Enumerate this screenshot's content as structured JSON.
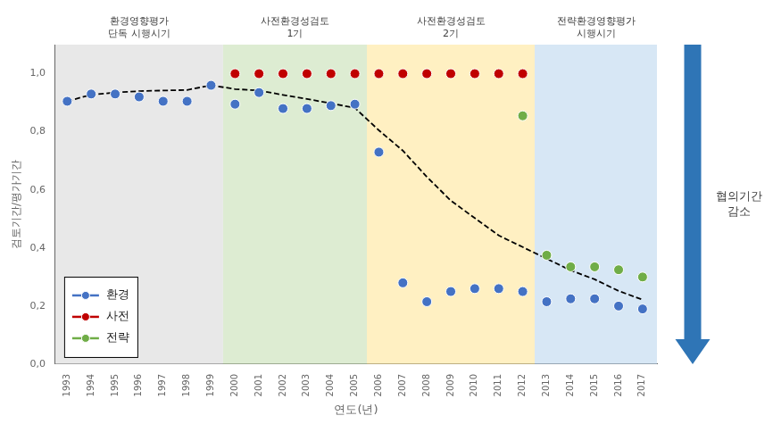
{
  "chart_data": {
    "type": "scatter",
    "xlabel": "연도(년)",
    "ylabel": "검토기간/평가기간",
    "xlim": [
      1992.5,
      2017.6
    ],
    "xticks": [
      1993,
      1994,
      1995,
      1996,
      1997,
      1998,
      1999,
      2000,
      2001,
      2002,
      2003,
      2004,
      2005,
      2006,
      2007,
      2008,
      2009,
      2010,
      2011,
      2012,
      2013,
      2014,
      2015,
      2016,
      2017
    ],
    "ylim": [
      0.0,
      1.1
    ],
    "yticks": [
      {
        "value": 0.0,
        "label": "0,0"
      },
      {
        "value": 0.2,
        "label": "0,2"
      },
      {
        "value": 0.4,
        "label": "0,4"
      },
      {
        "value": 0.6,
        "label": "0,6"
      },
      {
        "value": 0.8,
        "label": "0,8"
      },
      {
        "value": 1.0,
        "label": "1,0"
      }
    ],
    "grid": false,
    "legend": "lower left",
    "series": [
      {
        "type": "line",
        "line_style": "dashed",
        "color": "#000000",
        "x": [
          1993,
          1994,
          1995,
          1996,
          1997,
          1998,
          1999,
          2000,
          2001,
          2002,
          2003,
          2004,
          2005,
          2006,
          2007,
          2008,
          2009,
          2010,
          2011,
          2012,
          2013,
          2014,
          2015,
          2016,
          2017
        ],
        "values": [
          0.905,
          0.928,
          0.935,
          0.94,
          0.942,
          0.944,
          0.96,
          0.947,
          0.942,
          0.927,
          0.913,
          0.898,
          0.882,
          0.805,
          0.735,
          0.645,
          0.563,
          0.503,
          0.443,
          0.403,
          0.363,
          0.323,
          0.292,
          0.252,
          0.222
        ]
      },
      {
        "name": "환경",
        "type": "scatter",
        "marker": "circle",
        "color": "#4472c4",
        "x": [
          1993,
          1994,
          1995,
          1996,
          1997,
          1998,
          1999,
          2000,
          2001,
          2002,
          2003,
          2004,
          2005,
          2006,
          2007,
          2008,
          2009,
          2010,
          2011,
          2012,
          2013,
          2014,
          2015,
          2016,
          2017
        ],
        "values": [
          0.905,
          0.93,
          0.93,
          0.92,
          0.905,
          0.905,
          0.96,
          0.895,
          0.935,
          0.88,
          0.88,
          0.89,
          0.895,
          0.73,
          0.28,
          0.215,
          0.25,
          0.26,
          0.26,
          0.25,
          0.215,
          0.225,
          0.225,
          0.2,
          0.19
        ]
      },
      {
        "name": "사전",
        "type": "scatter",
        "marker": "circle",
        "color": "#c00000",
        "x": [
          2000,
          2001,
          2002,
          2003,
          2004,
          2005,
          2006,
          2007,
          2008,
          2009,
          2010,
          2011,
          2012
        ],
        "values": [
          1.0,
          1.0,
          1.0,
          1.0,
          1.0,
          1.0,
          1.0,
          1.0,
          1.0,
          1.0,
          1.0,
          1.0,
          1.0
        ]
      },
      {
        "name": "전략",
        "type": "scatter",
        "marker": "circle",
        "color": "#70ad47",
        "x": [
          2012,
          2013,
          2014,
          2015,
          2016,
          2017
        ],
        "values": [
          0.855,
          0.375,
          0.335,
          0.335,
          0.325,
          0.3
        ]
      }
    ],
    "regions": [
      {
        "xmin": 1992.5,
        "xmax": 1999.5,
        "color": "#d9d9d9",
        "label": "환경영향평가\n단독 시행시기"
      },
      {
        "xmin": 1999.5,
        "xmax": 2005.5,
        "color": "#c6e0b4",
        "label": "사전환경성검토\n1기"
      },
      {
        "xmin": 2005.5,
        "xmax": 2012.5,
        "color": "#ffe699",
        "label": "사전환경성검토\n2기"
      },
      {
        "xmin": 2012.5,
        "xmax": 2017.6,
        "color": "#bdd7ee",
        "label": "전략환경영향평가\n시행시기"
      }
    ],
    "annotations": [
      {
        "text": "협의기간\n감소",
        "color": "#2f75b6"
      }
    ]
  }
}
